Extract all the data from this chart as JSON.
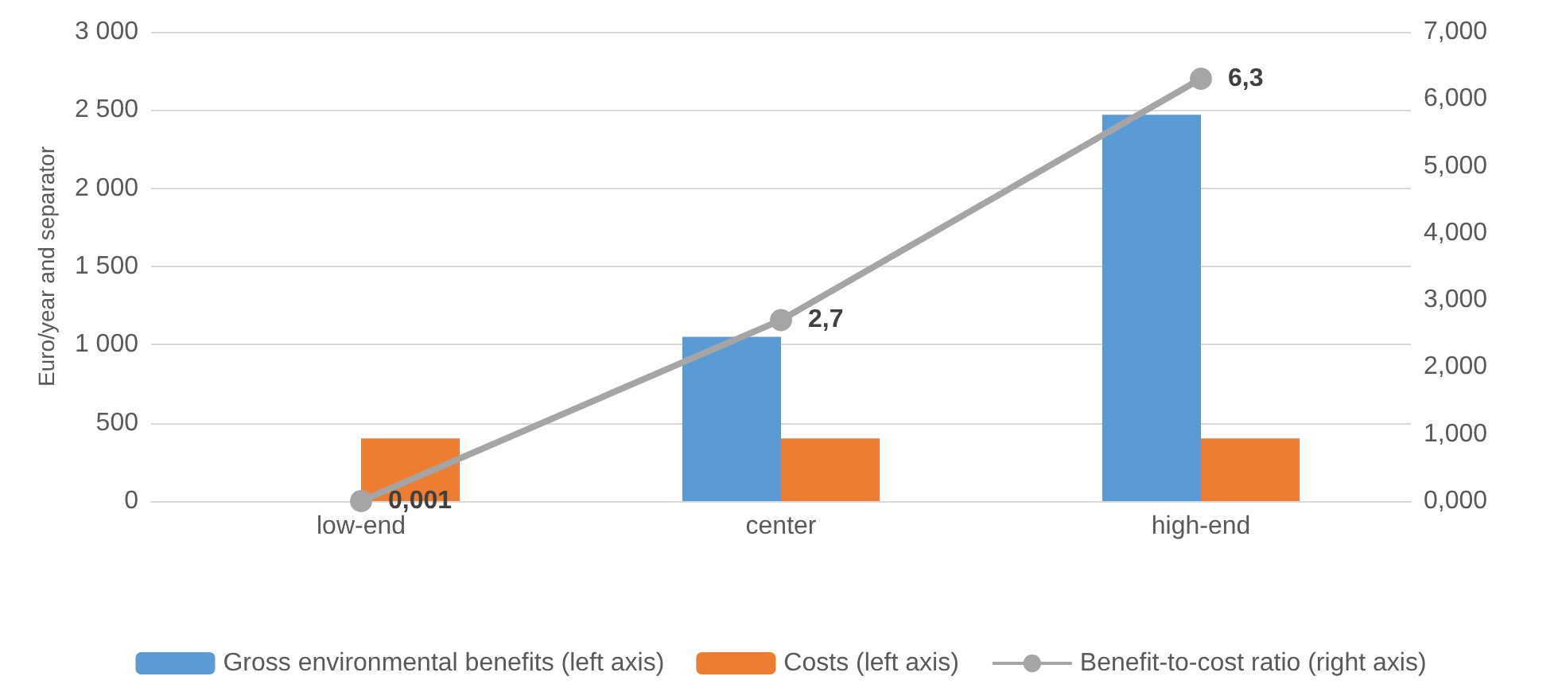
{
  "chart_data": {
    "type": "bar",
    "ylabel": "Euro/year and separator",
    "categories": [
      "low-end",
      "center",
      "high-end"
    ],
    "series": [
      {
        "name": "Gross environmental benefits (left axis)",
        "color": "#5b9bd5",
        "values": [
          0,
          1050,
          2470
        ]
      },
      {
        "name": "Costs (left axis)",
        "color": "#ed7d31",
        "values": [
          400,
          400,
          400
        ]
      },
      {
        "name": "Benefit-to-cost ratio (right axis)",
        "type": "line",
        "axis": "y2",
        "color": "#a5a5a5",
        "marker": "circle",
        "values": [
          0.001,
          2.7,
          6.3
        ],
        "value_labels": [
          "0,001",
          "2,7",
          "6,3"
        ]
      }
    ],
    "ylim": [
      0,
      3000
    ],
    "yticks": [
      0,
      500,
      {
        "value": 1000,
        "label": "1 000"
      },
      {
        "value": 1500,
        "label": "1 500"
      },
      {
        "value": 2000,
        "label": "2 000"
      },
      {
        "value": 2500,
        "label": "2 500"
      },
      {
        "value": 3000,
        "label": "3 000"
      }
    ],
    "y2lim": [
      0,
      7
    ],
    "y2ticks": [
      {
        "value": 0,
        "label": "0,000"
      },
      {
        "value": 1,
        "label": "1,000"
      },
      {
        "value": 2,
        "label": "2,000"
      },
      {
        "value": 3,
        "label": "3,000"
      },
      {
        "value": 4,
        "label": "4,000"
      },
      {
        "value": 5,
        "label": "5,000"
      },
      {
        "value": 6,
        "label": "6,000"
      },
      {
        "value": 7,
        "label": "7,000"
      }
    ],
    "grid": "y",
    "legend": "bottom"
  }
}
